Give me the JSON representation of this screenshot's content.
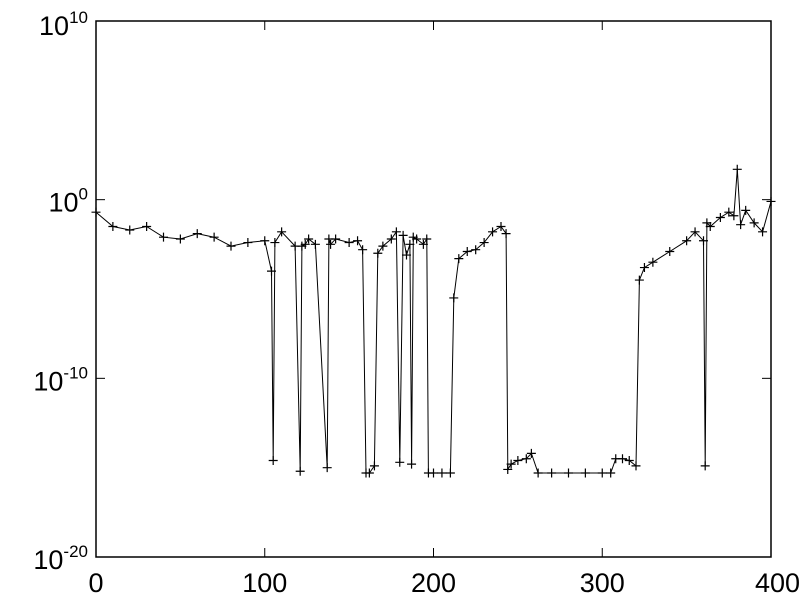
{
  "chart_data": {
    "type": "line",
    "title": "",
    "xlabel": "",
    "ylabel": "",
    "xlim": [
      0,
      400
    ],
    "ylim_log10": [
      -20,
      10
    ],
    "y_scale": "log",
    "grid": false,
    "legend": "none",
    "marker": "plus",
    "line_color": "#000000",
    "x_ticks": [
      {
        "value": 0,
        "label": "0"
      },
      {
        "value": 100,
        "label": "100"
      },
      {
        "value": 200,
        "label": "200"
      },
      {
        "value": 300,
        "label": "300"
      },
      {
        "value": 400,
        "label": "400"
      }
    ],
    "y_ticks": [
      {
        "log10": 10,
        "base": "10",
        "exp": "10"
      },
      {
        "log10": 0,
        "base": "10",
        "exp": "0"
      },
      {
        "log10": -10,
        "base": "10",
        "exp": "-10"
      },
      {
        "log10": -20,
        "base": "10",
        "exp": "-20"
      }
    ],
    "series": [
      {
        "x": [
          0,
          10,
          20,
          30,
          40,
          50,
          60,
          70,
          80,
          90,
          100,
          104,
          105,
          106,
          110,
          118,
          121,
          122,
          124,
          126,
          130,
          137,
          138,
          139,
          142,
          150,
          155,
          158,
          160,
          162,
          165,
          167,
          170,
          175,
          178,
          180,
          182,
          184,
          186,
          187,
          188,
          190,
          194,
          196,
          197,
          200,
          205,
          210,
          212,
          215,
          220,
          225,
          230,
          235,
          240,
          243,
          244,
          246,
          250,
          255,
          258,
          262,
          270,
          280,
          290,
          300,
          305,
          308,
          312,
          316,
          320,
          322,
          325,
          330,
          340,
          350,
          355,
          360,
          361,
          362,
          364,
          370,
          375,
          378,
          380,
          382,
          385,
          390,
          395,
          400
        ],
        "y_log10": [
          -0.7,
          -1.5,
          -1.7,
          -1.5,
          -2.1,
          -2.2,
          -1.9,
          -2.1,
          -2.6,
          -2.4,
          -2.3,
          -4.0,
          -14.6,
          -2.4,
          -1.8,
          -2.6,
          -15.2,
          -2.6,
          -2.5,
          -2.2,
          -2.5,
          -15.0,
          -2.2,
          -2.5,
          -2.2,
          -2.4,
          -2.3,
          -2.8,
          -15.3,
          -15.3,
          -14.9,
          -3.0,
          -2.6,
          -2.2,
          -1.8,
          -14.7,
          -2.0,
          -3.1,
          -2.5,
          -14.8,
          -2.1,
          -2.2,
          -2.5,
          -2.2,
          -15.3,
          -15.3,
          -15.3,
          -15.3,
          -5.5,
          -3.3,
          -2.9,
          -2.8,
          -2.4,
          -1.8,
          -1.5,
          -1.9,
          -15.1,
          -14.8,
          -14.6,
          -14.5,
          -14.2,
          -15.3,
          -15.3,
          -15.3,
          -15.3,
          -15.3,
          -15.3,
          -14.5,
          -14.5,
          -14.6,
          -14.9,
          -4.5,
          -3.8,
          -3.5,
          -2.9,
          -2.3,
          -1.8,
          -2.3,
          -14.9,
          -1.3,
          -1.5,
          -1.0,
          -0.7,
          -0.9,
          1.7,
          -1.4,
          -0.6,
          -1.3,
          -1.8,
          -0.1
        ]
      }
    ]
  }
}
